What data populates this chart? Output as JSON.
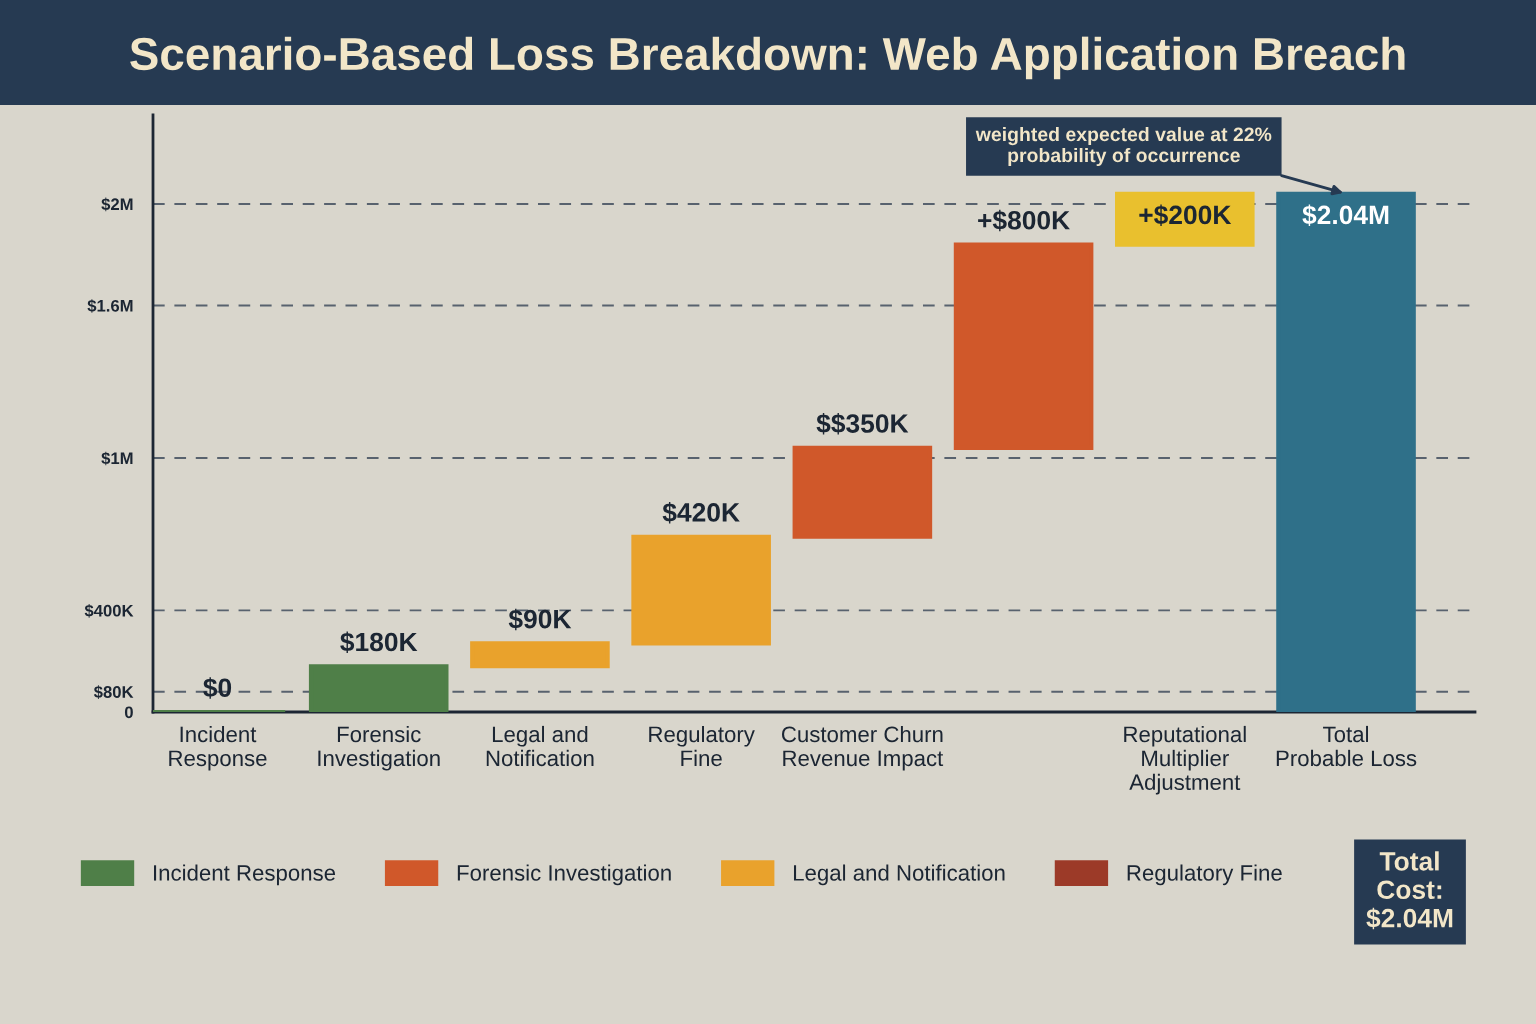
{
  "chart_data": {
    "type": "bar",
    "title": "Scenario-Based Loss Breakdown: Web Application Breach",
    "categories": [
      "Incident\nResponse",
      "Forensic\nInvestigation",
      "Legal and\nNotification",
      "Regulatory\nFine",
      "Customer Churn\nRevenue Impact",
      null,
      "Reputational\nMultiplier\nAdjustment",
      "Total\nProbable Loss"
    ],
    "series": [
      {
        "name": "Incident Response",
        "color": "#4f7f48",
        "values": [
          0,
          180000,
          null,
          null,
          null,
          null,
          null,
          null
        ],
        "base": [
          0,
          0,
          null,
          null,
          null,
          null,
          null,
          null
        ],
        "value_labels": [
          "$0",
          "$180K",
          null,
          null,
          null,
          null,
          null,
          null
        ]
      },
      {
        "name": "Forensic Investigation",
        "color": "#d0582a",
        "values": [
          null,
          null,
          null,
          null,
          350000,
          800000,
          null,
          null
        ],
        "base": [
          null,
          null,
          null,
          null,
          690000,
          1040000,
          null,
          null
        ],
        "value_labels": [
          null,
          null,
          null,
          null,
          "$$350K",
          "+$800K",
          null,
          null
        ]
      },
      {
        "name": "Legal and Notification",
        "color": "#e9a22c",
        "values": [
          null,
          null,
          90000,
          420000,
          null,
          null,
          null,
          null
        ],
        "base": [
          null,
          null,
          180000,
          270000,
          null,
          null,
          null,
          null
        ],
        "value_labels": [
          null,
          null,
          "$90K",
          "$420K",
          null,
          null,
          null,
          null
        ]
      },
      {
        "name": "Regulatory Fine",
        "color": "#9c3a28",
        "values": [
          null,
          null,
          null,
          null,
          null,
          null,
          null,
          null
        ]
      },
      {
        "color": "#e9c02e",
        "values": [
          null,
          null,
          null,
          null,
          null,
          null,
          200000,
          null
        ],
        "base": [
          null,
          null,
          null,
          null,
          null,
          null,
          1840000,
          null
        ],
        "value_labels": [
          null,
          null,
          null,
          null,
          null,
          null,
          "+$200K",
          null
        ]
      },
      {
        "color": "#2f7089",
        "values": [
          null,
          null,
          null,
          null,
          null,
          null,
          null,
          2040000
        ],
        "base": [
          null,
          null,
          null,
          null,
          null,
          null,
          null,
          0
        ],
        "value_labels": [
          null,
          null,
          null,
          null,
          null,
          null,
          null,
          "$2.04M"
        ]
      }
    ],
    "ylim": [
      0,
      2350000
    ],
    "yticks": [
      0,
      {
        "value": 80000,
        "label": "$80K"
      },
      {
        "value": 400000,
        "label": "$400K"
      },
      {
        "value": 1000000,
        "label": "$1M"
      },
      {
        "value": 1600000,
        "label": "$1.6M"
      },
      {
        "value": 2000000,
        "label": "$2M"
      }
    ],
    "grid": "y",
    "legend": "bottom",
    "annotations": [
      {
        "text": "weighted expected value at 22%\nprobability of occurrence",
        "x": "Total\nProbable Loss",
        "y": 2040000
      },
      "Total\nCost:\n$2.04M"
    ]
  }
}
